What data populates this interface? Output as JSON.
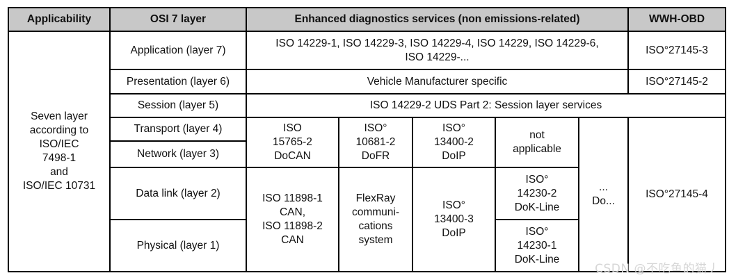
{
  "headers": {
    "applicability": "Applicability",
    "osi": "OSI 7 layer",
    "enhanced": "Enhanced diagnostics services (non emissions-related)",
    "wwh": "WWH-OBD"
  },
  "applicability_text": "Seven layer\naccording to\nISO/IEC\n7498-1\nand\nISO/IEC 10731",
  "layers": {
    "application": "Application (layer 7)",
    "presentation": "Presentation (layer 6)",
    "session": "Session (layer 5)",
    "transport": "Transport (layer 4)",
    "network": "Network (layer 3)",
    "datalink": "Data link (layer 2)",
    "physical": "Physical (layer 1)"
  },
  "enhanced": {
    "application": "ISO 14229-1, ISO 14229-3, ISO 14229-4, ISO 14229, ISO 14229-6,\nISO 14229-...",
    "presentation": "Vehicle Manufacturer specific",
    "session": "ISO 14229-2 UDS Part 2: Session layer services",
    "docan": "ISO\n15765-2\nDoCAN",
    "dofr": "ISO°\n10681-2\nDoFR",
    "doip_tn": "ISO°\n13400-2\nDoIP",
    "not_applicable": "not\napplicable",
    "ellipsis": "...\nDo...",
    "can": "ISO 11898-1\nCAN,\nISO 11898-2\nCAN",
    "flexray": "FlexRay\ncommuni-\ncations\nsystem",
    "doip_phy": "ISO°\n13400-3\nDoIP",
    "kline_dl": "ISO°\n14230-2\nDoK-Line",
    "kline_phy": "ISO°\n14230-1\nDoK-Line"
  },
  "wwh": {
    "application": "ISO°27145-3",
    "presentation": "ISO°27145-2",
    "lower": "ISO°27145-4"
  },
  "watermark": "CSDN @不吃鱼的猫丿"
}
